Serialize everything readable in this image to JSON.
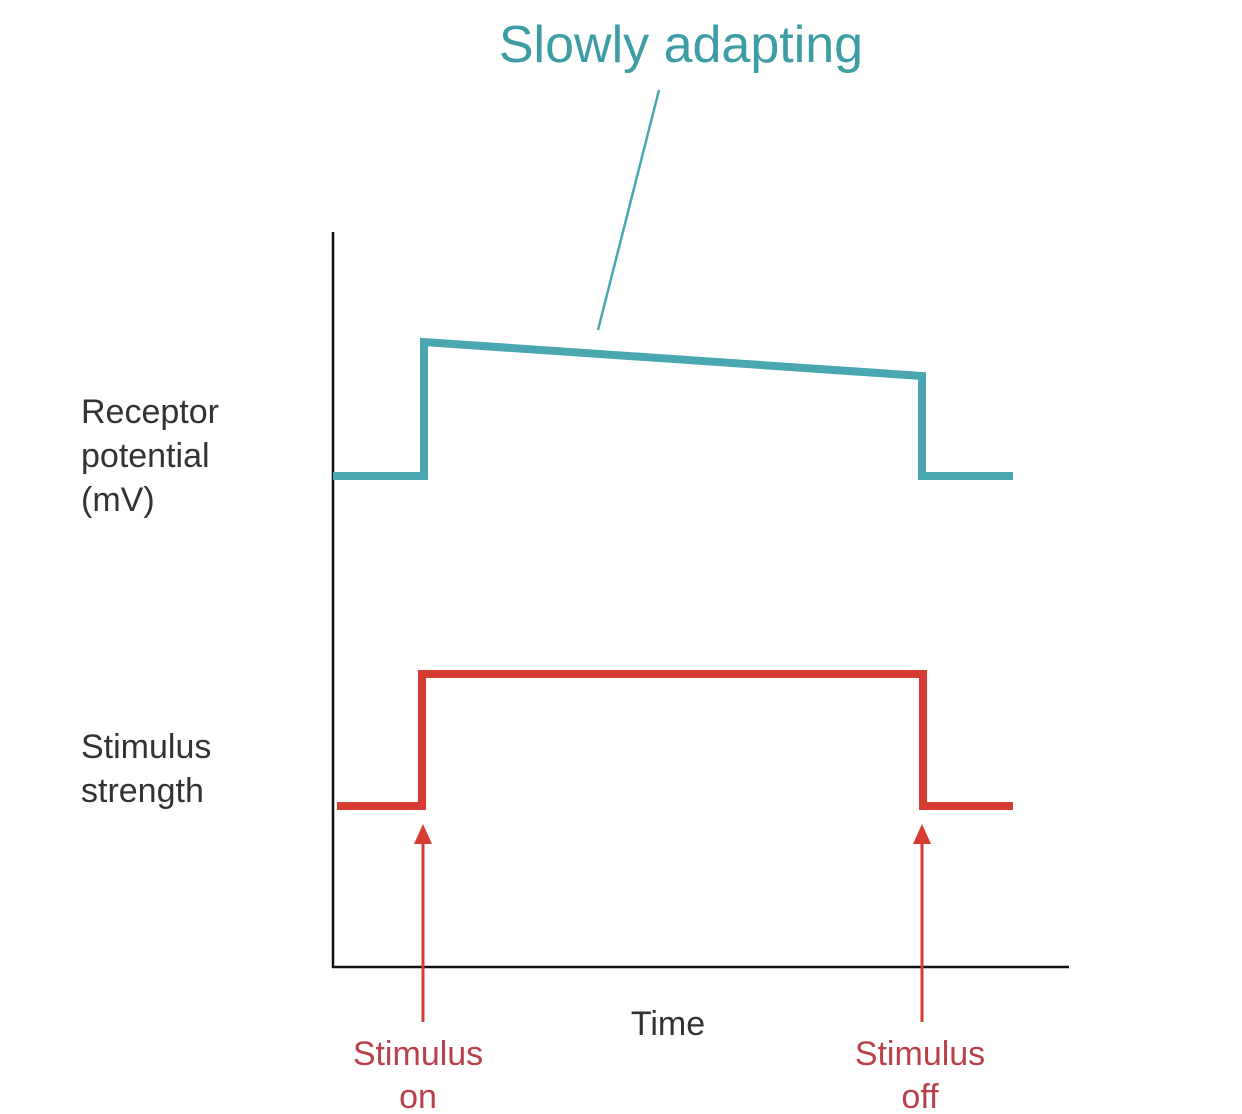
{
  "title": "Slowly adapting",
  "y_labels": {
    "receptor": [
      "Receptor",
      "potential",
      "(mV)"
    ],
    "stimulus": [
      "Stimulus",
      "strength"
    ]
  },
  "x_label": "Time",
  "markers": {
    "on": [
      "Stimulus",
      "on"
    ],
    "off": [
      "Stimulus",
      "off"
    ]
  },
  "colors": {
    "receptor_trace": "#4aa6b0",
    "stimulus_trace": "#d63c32",
    "title": "#3d9ca4",
    "marker_text": "#b8404a"
  }
}
